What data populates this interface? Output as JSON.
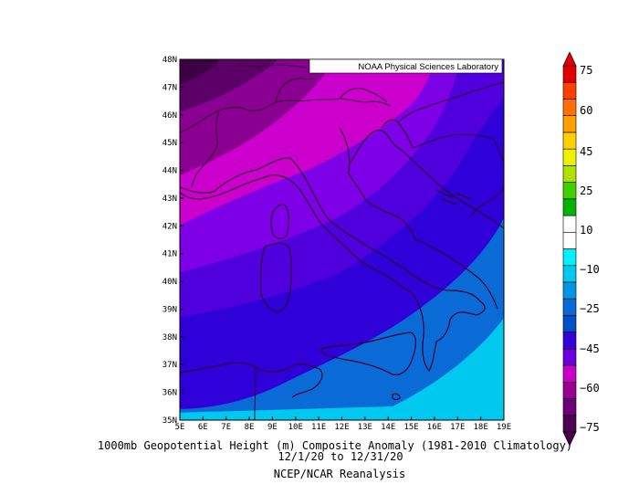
{
  "credit": "NOAA Physical Sciences Laboratory",
  "caption": {
    "line1": "1000mb Geopotential Height (m) Composite Anomaly (1981-2010 Climatology)",
    "line2": "12/1/20  to 12/31/20",
    "line3": "NCEP/NCAR Reanalysis"
  },
  "map": {
    "lon_min": 5,
    "lon_max": 19,
    "lat_min": 35,
    "lat_max": 48,
    "lon_labels": [
      "5E",
      "6E",
      "7E",
      "8E",
      "9E",
      "10E",
      "11E",
      "12E",
      "13E",
      "14E",
      "15E",
      "16E",
      "17E",
      "18E",
      "19E"
    ],
    "lat_labels": [
      "35N",
      "36N",
      "37N",
      "38N",
      "39N",
      "40N",
      "41N",
      "42N",
      "43N",
      "44N",
      "45N",
      "46N",
      "47N",
      "48N"
    ],
    "field": [
      {
        "level": "-75 to -70",
        "color": "#3d0045"
      },
      {
        "level": "-70 to -65",
        "color": "#5c0068"
      },
      {
        "level": "-65 to -60",
        "color": "#8a0090"
      },
      {
        "level": "-60 to -55",
        "color": "#cc00cc"
      },
      {
        "level": "-55 to -50",
        "color": "#7e00e6"
      },
      {
        "level": "-50 to -45",
        "color": "#5000dd"
      },
      {
        "level": "-45 to -35",
        "color": "#3000d8"
      },
      {
        "level": "-35 to -25",
        "color": "#0a6ad6"
      },
      {
        "level": "-25 to -15",
        "color": "#00c8ee"
      }
    ]
  },
  "colorbar": {
    "colors": [
      "#4b0050",
      "#6e0078",
      "#9a0096",
      "#c800c8",
      "#6c00dc",
      "#3800d8",
      "#0050cc",
      "#0a6ad6",
      "#0096e6",
      "#00c8ee",
      "#00f0ff",
      "#ffffff",
      "#ffffff",
      "#00b400",
      "#40d000",
      "#b0e000",
      "#f0f000",
      "#ffd000",
      "#ffa000",
      "#ff7000",
      "#ff4000",
      "#e00000"
    ],
    "labels": [
      "75",
      "60",
      "45",
      "25",
      "10",
      "−10",
      "−25",
      "−45",
      "−60",
      "−75"
    ]
  }
}
